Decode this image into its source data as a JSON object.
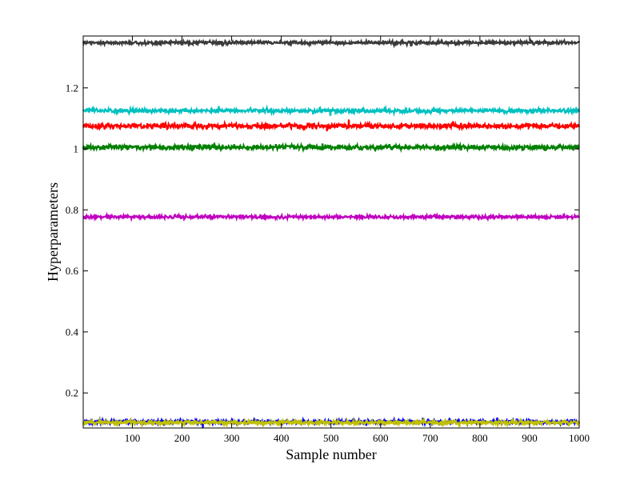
{
  "chart_data": {
    "type": "line",
    "title": "",
    "xlabel": "Sample number",
    "ylabel": "Hyperparameters",
    "xlim": [
      1,
      1000
    ],
    "ylim": [
      0.085,
      1.37
    ],
    "grid": false,
    "legend": "none",
    "x_ticks": [
      100,
      200,
      300,
      400,
      500,
      600,
      700,
      800,
      900,
      1000
    ],
    "x_tick_labels": [
      "100",
      "200",
      "300",
      "400",
      "500",
      "600",
      "700",
      "800",
      "900",
      "1000"
    ],
    "y_ticks": [
      0.2,
      0.4,
      0.6,
      0.8,
      1.0,
      1.2
    ],
    "y_tick_labels": [
      "0.2",
      "0.4",
      "0.6",
      "0.8",
      "1",
      "1.2"
    ],
    "n_samples": 1000,
    "series": [
      {
        "color": "#3a3a3a",
        "mean": 1.348,
        "noise": 0.004
      },
      {
        "color": "#00c0c0",
        "mean": 1.125,
        "noise": 0.005
      },
      {
        "color": "#ff0000",
        "mean": 1.075,
        "noise": 0.006
      },
      {
        "color": "#008000",
        "mean": 1.005,
        "noise": 0.006
      },
      {
        "color": "#c000c0",
        "mean": 0.777,
        "noise": 0.004
      },
      {
        "color": "#0000ff",
        "mean": 0.105,
        "noise": 0.005
      },
      {
        "color": "#c0c000",
        "mean": 0.103,
        "noise": 0.005
      }
    ]
  }
}
